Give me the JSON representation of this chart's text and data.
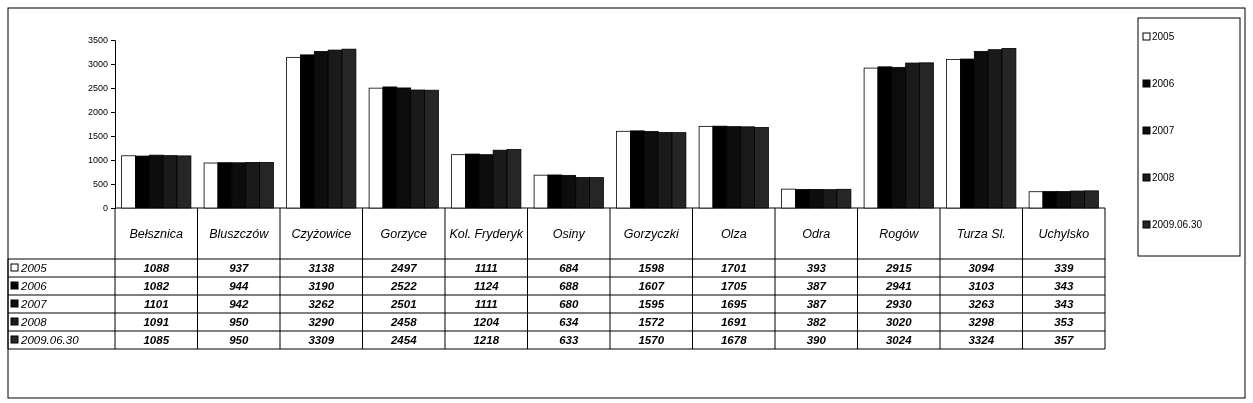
{
  "chart_data": {
    "type": "bar",
    "categories": [
      "Bełsznica",
      "Bluszczów",
      "Czyżowice",
      "Gorzyce",
      "Kol. Fryderyk",
      "Osiny",
      "Gorzyczki",
      "Olza",
      "Odra",
      "Rogów",
      "Turza Sl.",
      "Uchylsko"
    ],
    "series": [
      {
        "name": "2005",
        "color": "#ffffff",
        "values": [
          1088,
          937,
          3138,
          2497,
          1111,
          684,
          1598,
          1701,
          393,
          2915,
          3094,
          339
        ]
      },
      {
        "name": "2006",
        "color": "#000000",
        "values": [
          1082,
          944,
          3190,
          2522,
          1124,
          688,
          1607,
          1705,
          387,
          2941,
          3103,
          343
        ]
      },
      {
        "name": "2007",
        "color": "#0d0d0d",
        "values": [
          1101,
          942,
          3262,
          2501,
          1111,
          680,
          1595,
          1695,
          387,
          2930,
          3263,
          343
        ]
      },
      {
        "name": "2008",
        "color": "#1a1a1a",
        "values": [
          1091,
          950,
          3290,
          2458,
          1204,
          634,
          1572,
          1691,
          382,
          3020,
          3298,
          353
        ]
      },
      {
        "name": "2009.06.30",
        "color": "#262626",
        "values": [
          1085,
          950,
          3309,
          2454,
          1218,
          633,
          1570,
          1678,
          390,
          3024,
          3324,
          357
        ]
      }
    ],
    "ylim": [
      0,
      3500
    ],
    "yticks": [
      0,
      500,
      1000,
      1500,
      2000,
      2500,
      3000,
      3500
    ],
    "grid": false,
    "legend": "right",
    "data_labels": true
  }
}
